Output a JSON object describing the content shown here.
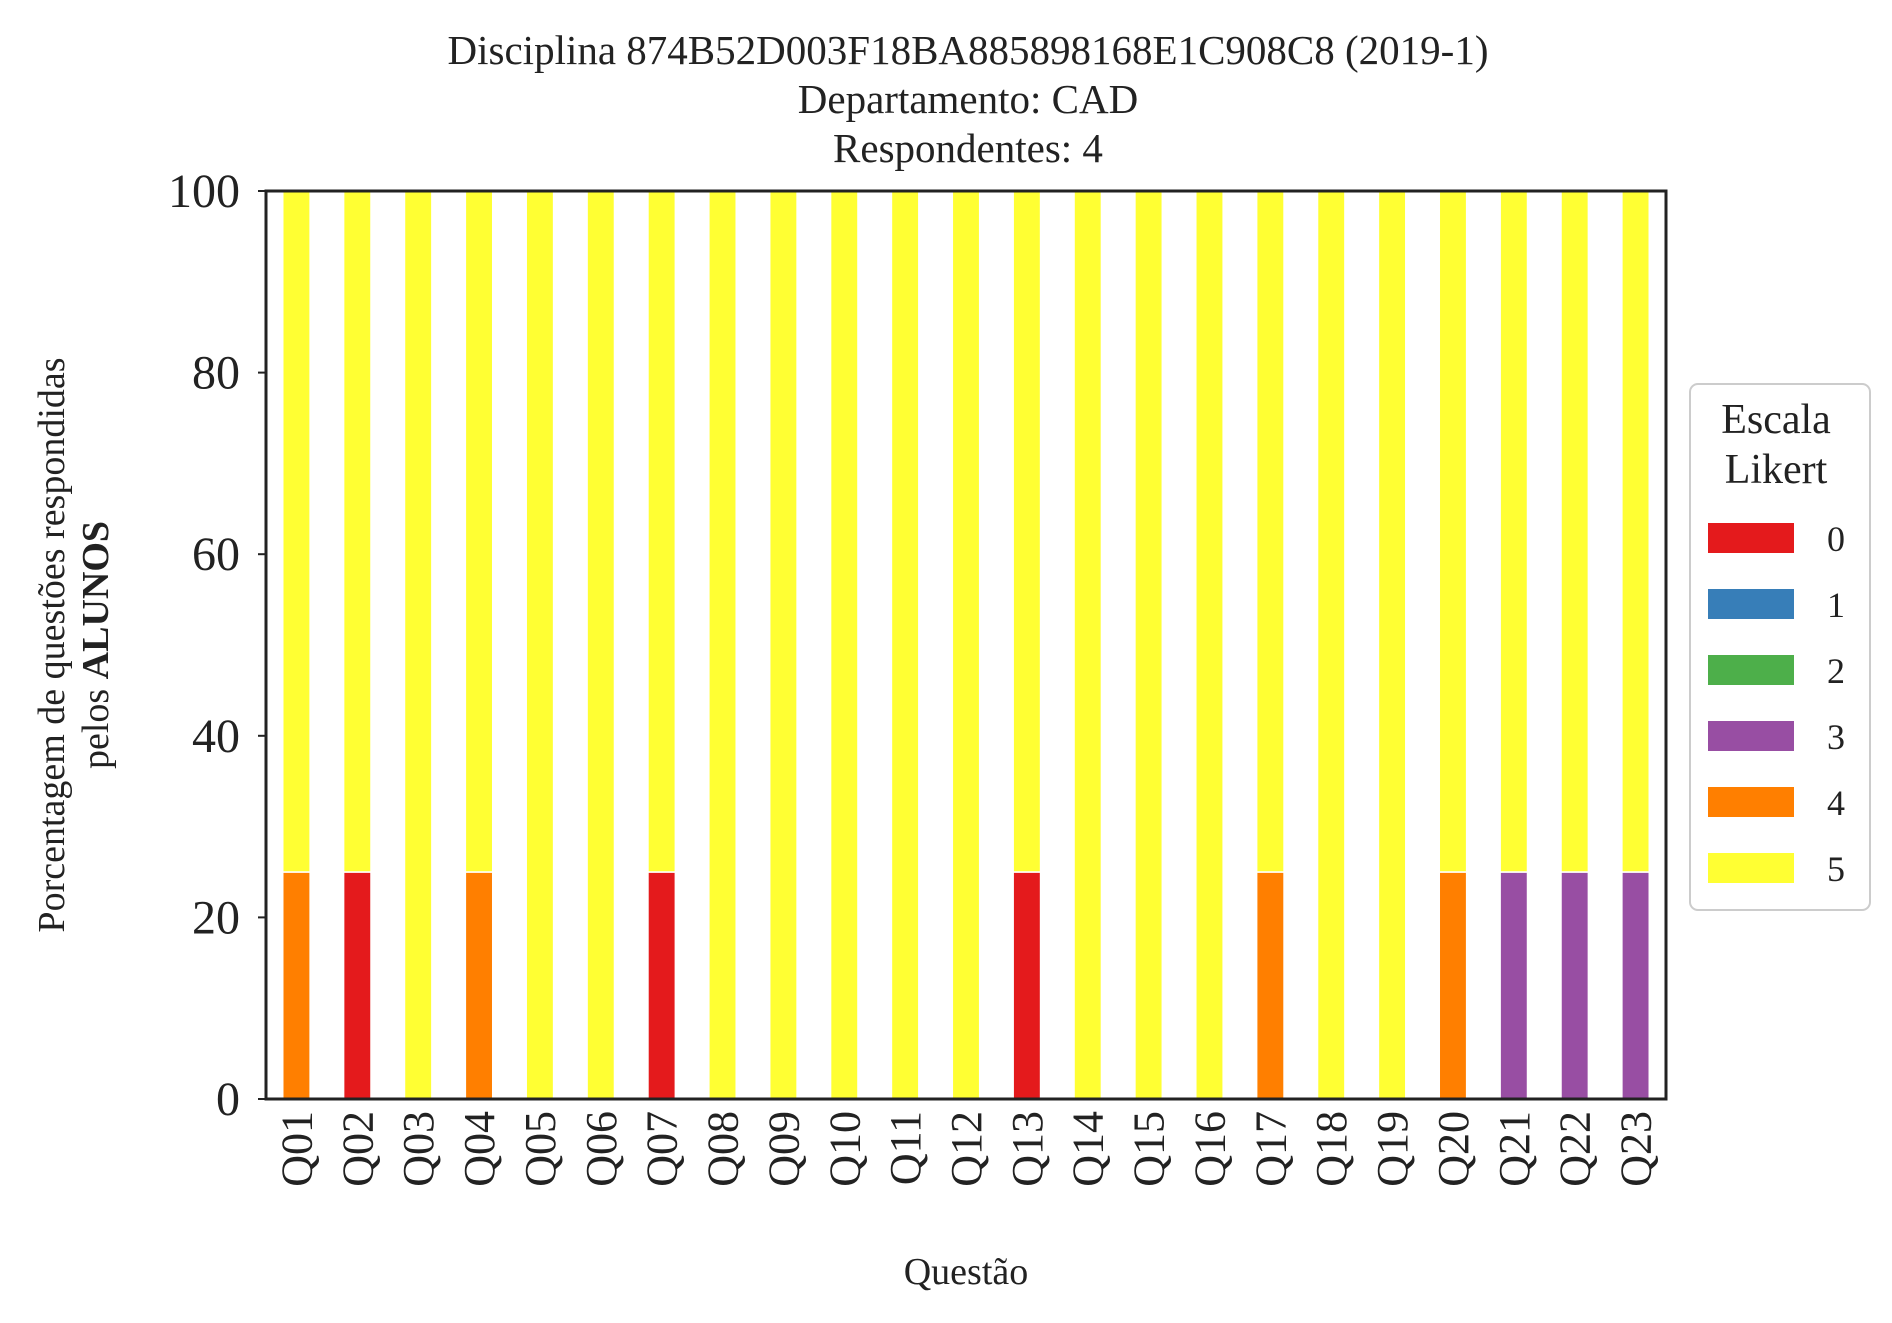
{
  "chart_data": {
    "type": "bar",
    "stacked": true,
    "title_lines": [
      "Disciplina 874B52D003F18BA885898168E1C908C8 (2019-1)",
      "Departamento: CAD",
      "Respondentes: 4"
    ],
    "xlabel": "Questão",
    "ylabel_line1": "Porcentagem de questões respondidas",
    "ylabel_line2_prefix": "pelos ",
    "ylabel_line2_bold": "ALUNOS",
    "ylim": [
      0,
      100
    ],
    "yticks": [
      0,
      20,
      40,
      60,
      80,
      100
    ],
    "categories": [
      "Q01",
      "Q02",
      "Q03",
      "Q04",
      "Q05",
      "Q06",
      "Q07",
      "Q08",
      "Q09",
      "Q10",
      "Q11",
      "Q12",
      "Q13",
      "Q14",
      "Q15",
      "Q16",
      "Q17",
      "Q18",
      "Q19",
      "Q20",
      "Q21",
      "Q22",
      "Q23"
    ],
    "legend": {
      "title_lines": [
        "Escala",
        "Likert"
      ],
      "placement": "right"
    },
    "series": [
      {
        "name": "0",
        "color": "#e41a1c",
        "values": [
          0,
          25,
          0,
          0,
          0,
          0,
          25,
          0,
          0,
          0,
          0,
          0,
          25,
          0,
          0,
          0,
          0,
          0,
          0,
          0,
          0,
          0,
          0
        ]
      },
      {
        "name": "1",
        "color": "#377eb8",
        "values": [
          0,
          0,
          0,
          0,
          0,
          0,
          0,
          0,
          0,
          0,
          0,
          0,
          0,
          0,
          0,
          0,
          0,
          0,
          0,
          0,
          0,
          0,
          0
        ]
      },
      {
        "name": "2",
        "color": "#4daf4a",
        "values": [
          0,
          0,
          0,
          0,
          0,
          0,
          0,
          0,
          0,
          0,
          0,
          0,
          0,
          0,
          0,
          0,
          0,
          0,
          0,
          0,
          0,
          0,
          0
        ]
      },
      {
        "name": "3",
        "color": "#984ea3",
        "values": [
          0,
          0,
          0,
          0,
          0,
          0,
          0,
          0,
          0,
          0,
          0,
          0,
          0,
          0,
          0,
          0,
          0,
          0,
          0,
          0,
          25,
          25,
          25
        ]
      },
      {
        "name": "4",
        "color": "#ff7f00",
        "values": [
          25,
          0,
          0,
          25,
          0,
          0,
          0,
          0,
          0,
          0,
          0,
          0,
          0,
          0,
          0,
          0,
          25,
          0,
          0,
          25,
          0,
          0,
          0
        ]
      },
      {
        "name": "5",
        "color": "#ffff33",
        "values": [
          75,
          75,
          100,
          75,
          100,
          100,
          75,
          100,
          100,
          100,
          100,
          100,
          75,
          100,
          100,
          100,
          75,
          100,
          100,
          75,
          75,
          75,
          75
        ]
      }
    ]
  }
}
